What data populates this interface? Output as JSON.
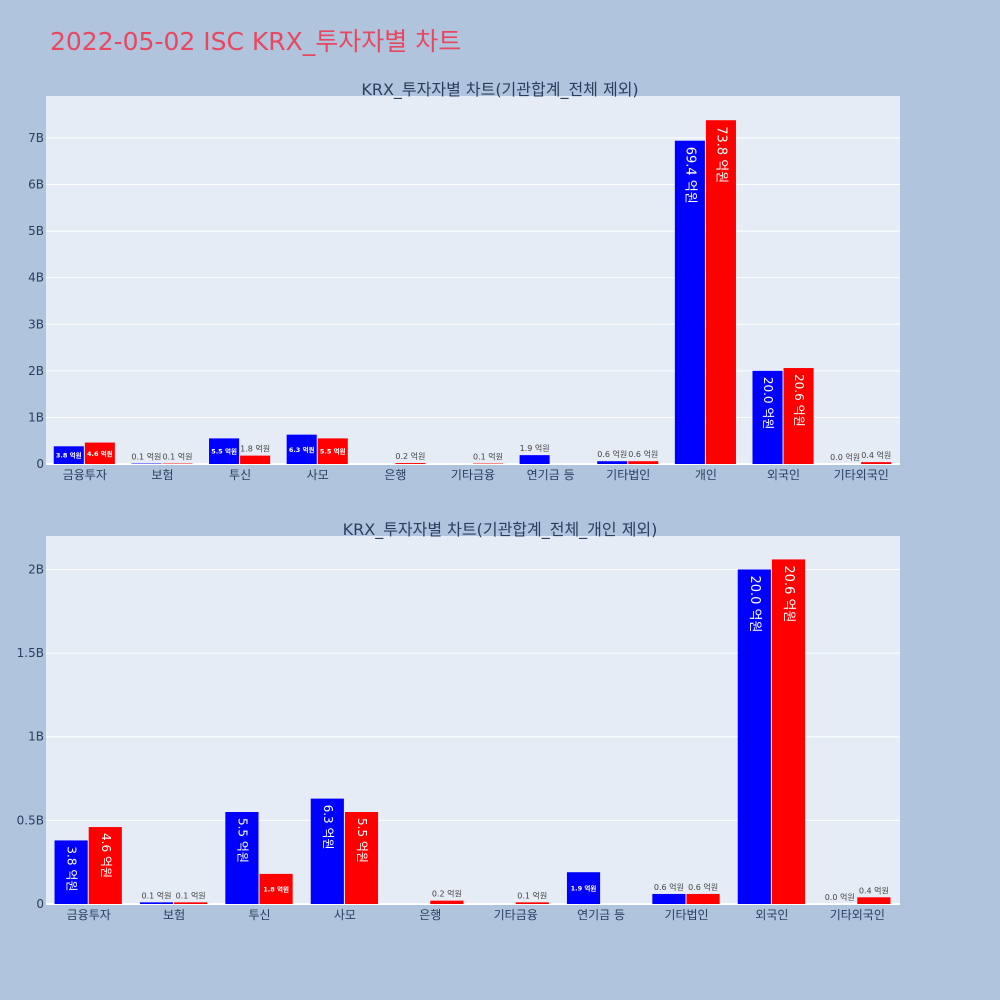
{
  "page_title": "2022-05-02 ISC KRX_투자자별 차트",
  "colors": {
    "series1": "#0000ff",
    "series2": "#ff0000",
    "plot_bg": "#e5ecf6",
    "paper_bg": "#b0c4de",
    "title": "#e8485f"
  },
  "chart_data": [
    {
      "type": "bar",
      "title": "KRX_투자자별 차트(기관합계_전체 제외)",
      "categories": [
        "금융투자",
        "보험",
        "투신",
        "사모",
        "은행",
        "기타금융",
        "연기금 등",
        "기타법인",
        "개인",
        "외국인",
        "기타외국인"
      ],
      "series": [
        {
          "values": [
            0.38,
            0.01,
            0.55,
            0.63,
            0,
            0,
            0.19,
            0.06,
            6.94,
            2.0,
            0.0
          ],
          "labels": [
            "3.8 억원",
            "0.1 억원",
            "5.5 억원",
            "6.3 억원",
            "",
            "",
            "1.9 억원",
            "0.6 억원",
            "69.4 억원",
            "20.0 억원",
            "0.0 억원"
          ]
        },
        {
          "values": [
            0.46,
            0.01,
            0.18,
            0.55,
            0.02,
            0.01,
            0,
            0.06,
            7.38,
            2.06,
            0.04
          ],
          "labels": [
            "4.6 억원",
            "0.1 억원",
            "1.8 억원",
            "5.5 억원",
            "0.2 억원",
            "0.1 억원",
            "",
            "0.6 억원",
            "73.8 억원",
            "20.6 억원",
            "0.4 억원"
          ]
        }
      ],
      "ylim": [
        0,
        7.9
      ],
      "yticks": [
        0,
        1,
        2,
        3,
        4,
        5,
        6,
        7
      ],
      "yticklabels": [
        "0",
        "1B",
        "2B",
        "3B",
        "4B",
        "5B",
        "6B",
        "7B"
      ],
      "grid": true
    },
    {
      "type": "bar",
      "title": "KRX_투자자별 차트(기관합계_전체_개인 제외)",
      "categories": [
        "금융투자",
        "보험",
        "투신",
        "사모",
        "은행",
        "기타금융",
        "연기금 등",
        "기타법인",
        "외국인",
        "기타외국인"
      ],
      "series": [
        {
          "values": [
            0.38,
            0.01,
            0.55,
            0.63,
            0,
            0,
            0.19,
            0.06,
            2.0,
            0.0
          ],
          "labels": [
            "3.8 억원",
            "0.1 억원",
            "5.5 억원",
            "6.3 억원",
            "",
            "",
            "1.9 억원",
            "0.6 억원",
            "20.0 억원",
            "0.0 억원"
          ]
        },
        {
          "values": [
            0.46,
            0.01,
            0.18,
            0.55,
            0.02,
            0.01,
            0,
            0.06,
            2.06,
            0.04
          ],
          "labels": [
            "4.6 억원",
            "0.1 억원",
            "1.8 억원",
            "5.5 억원",
            "0.2 억원",
            "0.1 억원",
            "",
            "0.6 억원",
            "20.6 억원",
            "0.4 억원"
          ]
        }
      ],
      "ylim": [
        0,
        2.2
      ],
      "yticks": [
        0,
        0.5,
        1,
        1.5,
        2
      ],
      "yticklabels": [
        "0",
        "0.5B",
        "1B",
        "1.5B",
        "2B"
      ],
      "grid": true
    }
  ]
}
